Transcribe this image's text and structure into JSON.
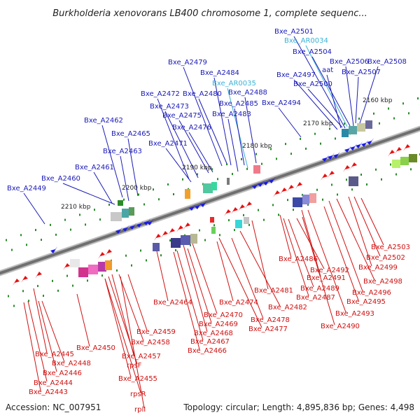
{
  "title": "Burkholderia xenovorans LB400 chromosome 1, complete sequenc...",
  "footer": {
    "accession": "Accession: NC_007951",
    "summary": "Topology: circular; Length: 4,895,836 bp; Genes: 4,498"
  },
  "colors": {
    "upper_label": "#1a1ab8",
    "rna_label": "#39b2d6",
    "lower_label": "#d01010",
    "forward_gene": "#1a1ae6",
    "reverse_gene": "#e81010",
    "backbone": "#7a7a7a",
    "tick_dot": "#2a8a2a"
  },
  "ticks": [
    "2160 kbp",
    "2170 kbp",
    "2180 kbp",
    "2190 kbp",
    "2200 kbp",
    "2210 kbp"
  ],
  "upper_labels": [
    {
      "text": "Bxe_A2501",
      "kind": "gene"
    },
    {
      "text": "Bxe_AR0034",
      "kind": "rna"
    },
    {
      "text": "Bxe_A2504",
      "kind": "gene"
    },
    {
      "text": "Bxe_A2506",
      "kind": "gene"
    },
    {
      "text": "Bxe_A2508",
      "kind": "gene"
    },
    {
      "text": "aat",
      "kind": "gene"
    },
    {
      "text": "Bxe_A2497",
      "kind": "gene"
    },
    {
      "text": "Bxe_A2507",
      "kind": "gene"
    },
    {
      "text": "Bxe_A2500",
      "kind": "gene"
    },
    {
      "text": "Bxe_A2479",
      "kind": "gene"
    },
    {
      "text": "Bxe_A2484",
      "kind": "gene"
    },
    {
      "text": "Bxe_AR0035",
      "kind": "rna"
    },
    {
      "text": "Bxe_A2472",
      "kind": "gene"
    },
    {
      "text": "Bxe_A2480",
      "kind": "gene"
    },
    {
      "text": "Bxe_A2488",
      "kind": "gene"
    },
    {
      "text": "Bxe_A2473",
      "kind": "gene"
    },
    {
      "text": "Bxe_A2485",
      "kind": "gene"
    },
    {
      "text": "Bxe_A2494",
      "kind": "gene"
    },
    {
      "text": "Bxe_A2475",
      "kind": "gene"
    },
    {
      "text": "Bxe_A2483",
      "kind": "gene"
    },
    {
      "text": "Bxe_A2462",
      "kind": "gene"
    },
    {
      "text": "Bxe_A2476",
      "kind": "gene"
    },
    {
      "text": "Bxe_A2465",
      "kind": "gene"
    },
    {
      "text": "Bxe_A2471",
      "kind": "gene"
    },
    {
      "text": "Bxe_A2463",
      "kind": "gene"
    },
    {
      "text": "Bxe_A2461",
      "kind": "gene"
    },
    {
      "text": "Bxe_A2460",
      "kind": "gene"
    },
    {
      "text": "Bxe_A2449",
      "kind": "gene"
    }
  ],
  "lower_labels": [
    "Bxe_A2503",
    "Bxe_A2502",
    "Bxe_A2499",
    "Bxe_A2486",
    "Bxe_A2492",
    "Bxe_A2491",
    "Bxe_A2498",
    "Bxe_A2489",
    "Bxe_A2496",
    "Bxe_A2481",
    "Bxe_A2487",
    "Bxe_A2495",
    "Bxe_A2464",
    "Bxe_A2474",
    "Bxe_A2482",
    "Bxe_A2493",
    "Bxe_A2470",
    "Bxe_A2478",
    "Bxe_A2469",
    "Bxe_A2490",
    "Bxe_A2477",
    "Bxe_A2459",
    "Bxe_A2468",
    "Bxe_A2458",
    "Bxe_A2467",
    "Bxe_A2450",
    "Bxe_A2466",
    "Bxe_A2445",
    "Bxe_A2457",
    "Bxe_A2448",
    "rpsF",
    "Bxe_A2446",
    "Bxe_A2455",
    "Bxe_A2444",
    "Bxe_A2443",
    "rpsR",
    "rplI"
  ]
}
